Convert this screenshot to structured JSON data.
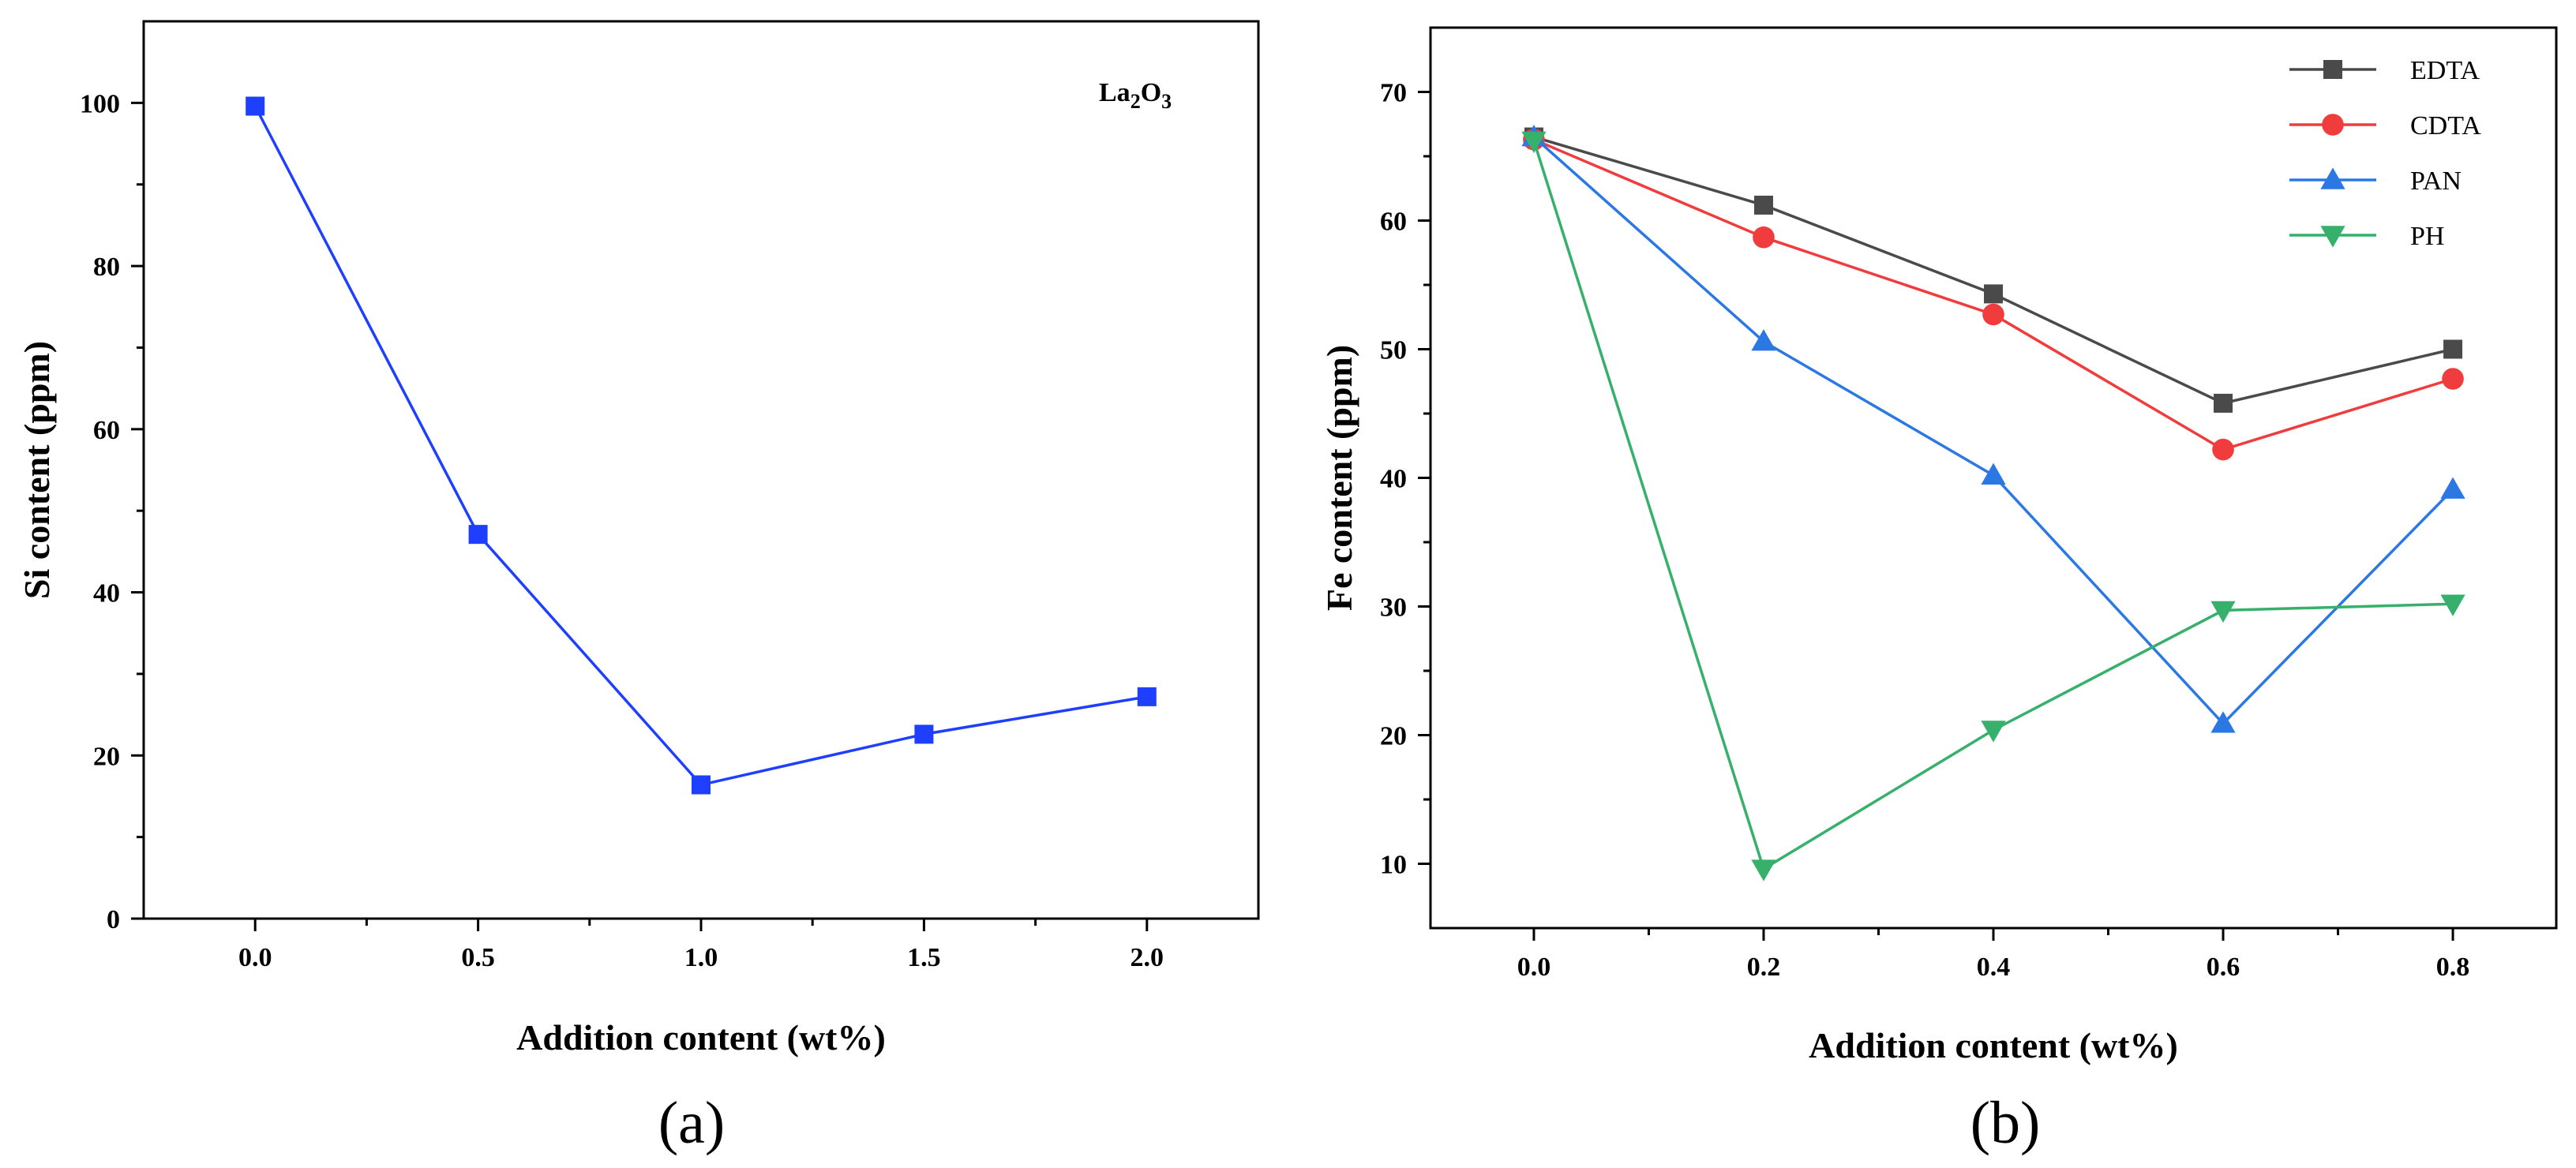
{
  "chart_data": [
    {
      "panel_label": "(a)",
      "type": "line",
      "title": "",
      "xlabel": "Addition content (wt%)",
      "ylabel": "Si content (ppm)",
      "xlim": [
        -0.25,
        2.25
      ],
      "ylim": [
        0,
        110
      ],
      "xticks": [
        0.0,
        0.5,
        1.0,
        1.5,
        2.0
      ],
      "xtick_labels": [
        "0.0",
        "0.5",
        "1.0",
        "1.5",
        "2.0"
      ],
      "yticks": [
        0,
        20,
        40,
        60,
        80,
        100
      ],
      "ytick_labels": [
        "0",
        "20",
        "40",
        "60",
        "80",
        "100"
      ],
      "annotation": {
        "base1": "La",
        "sub1": "2",
        "base2": "O",
        "sub2": "3"
      },
      "series": [
        {
          "name": "La2O3",
          "color": "#1f3fff",
          "marker": "square",
          "x": [
            0.0,
            0.5,
            1.0,
            1.5,
            2.0
          ],
          "values": [
            99.6,
            47.1,
            16.4,
            22.6,
            27.2
          ]
        }
      ]
    },
    {
      "panel_label": "(b)",
      "type": "line",
      "title": "",
      "xlabel": "Addition content (wt%)",
      "ylabel": "Fe content (ppm)",
      "xlim": [
        -0.09,
        0.89
      ],
      "ylim": [
        5,
        75
      ],
      "xticks": [
        0.0,
        0.2,
        0.4,
        0.6,
        0.8
      ],
      "xtick_labels": [
        "0.0",
        "0.2",
        "0.4",
        "0.6",
        "0.8"
      ],
      "yticks": [
        10,
        20,
        30,
        40,
        50,
        60,
        70
      ],
      "ytick_labels": [
        "10",
        "20",
        "30",
        "40",
        "50",
        "60",
        "70"
      ],
      "legend_position": "top-right",
      "series": [
        {
          "name": "EDTA",
          "color": "#4a4a4a",
          "marker": "square",
          "x": [
            0.0,
            0.2,
            0.4,
            0.6,
            0.8
          ],
          "values": [
            66.5,
            61.2,
            54.3,
            45.8,
            50.0
          ]
        },
        {
          "name": "CDTA",
          "color": "#f03c3c",
          "marker": "circle",
          "x": [
            0.0,
            0.2,
            0.4,
            0.6,
            0.8
          ],
          "values": [
            66.3,
            58.7,
            52.7,
            42.2,
            47.7
          ]
        },
        {
          "name": "PAN",
          "color": "#2b78e4",
          "marker": "triangle-up",
          "x": [
            0.0,
            0.2,
            0.4,
            0.6,
            0.8
          ],
          "values": [
            66.5,
            50.6,
            40.2,
            20.9,
            39.1
          ]
        },
        {
          "name": "PH",
          "color": "#36b06a",
          "marker": "triangle-down",
          "x": [
            0.0,
            0.2,
            0.4,
            0.6,
            0.8
          ],
          "values": [
            66.2,
            9.6,
            20.4,
            29.7,
            30.2
          ]
        }
      ]
    }
  ]
}
